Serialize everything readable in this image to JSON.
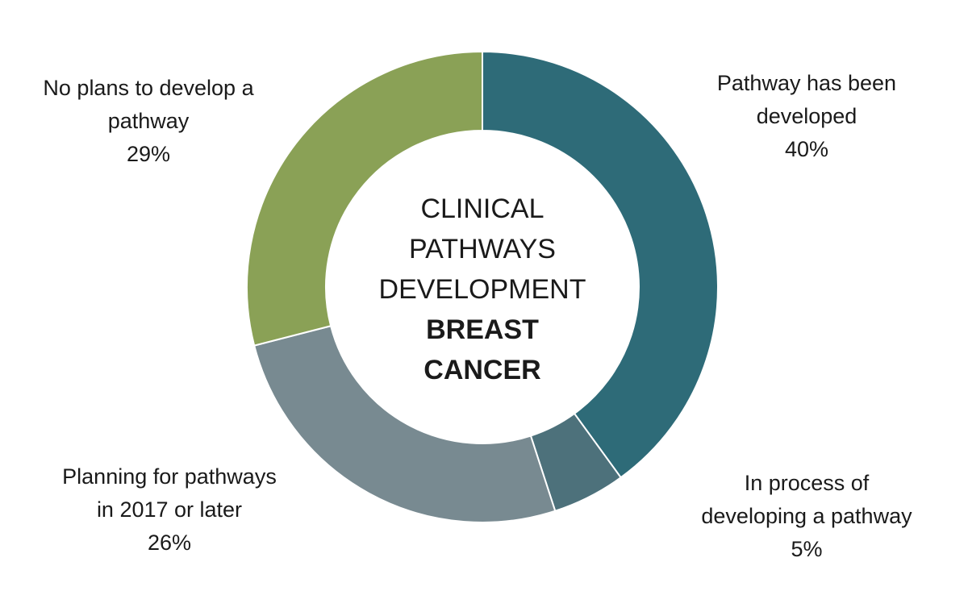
{
  "chart_data": {
    "type": "pie",
    "variant": "donut",
    "center_text": {
      "lines": [
        "CLINICAL",
        "PATHWAYS",
        "DEVELOPMENT"
      ],
      "bold_lines": [
        "BREAST",
        "CANCER"
      ]
    },
    "slices": [
      {
        "label_lines": [
          "Pathway has been",
          "developed"
        ],
        "value": 40,
        "value_label": "40%",
        "color": "#2E6B78"
      },
      {
        "label_lines": [
          "In process of",
          "developing  a pathway"
        ],
        "value": 5,
        "value_label": "5%",
        "color": "#4D717B"
      },
      {
        "label_lines": [
          "Planning for pathways",
          "in 2017 or later"
        ],
        "value": 26,
        "value_label": "26%",
        "color": "#788A91"
      },
      {
        "label_lines": [
          "No plans to develop a",
          "pathway"
        ],
        "value": 29,
        "value_label": "29%",
        "color": "#8AA156"
      }
    ],
    "start": "top",
    "direction": "clockwise",
    "slice_border_color": "#ffffff",
    "legend": "none"
  }
}
